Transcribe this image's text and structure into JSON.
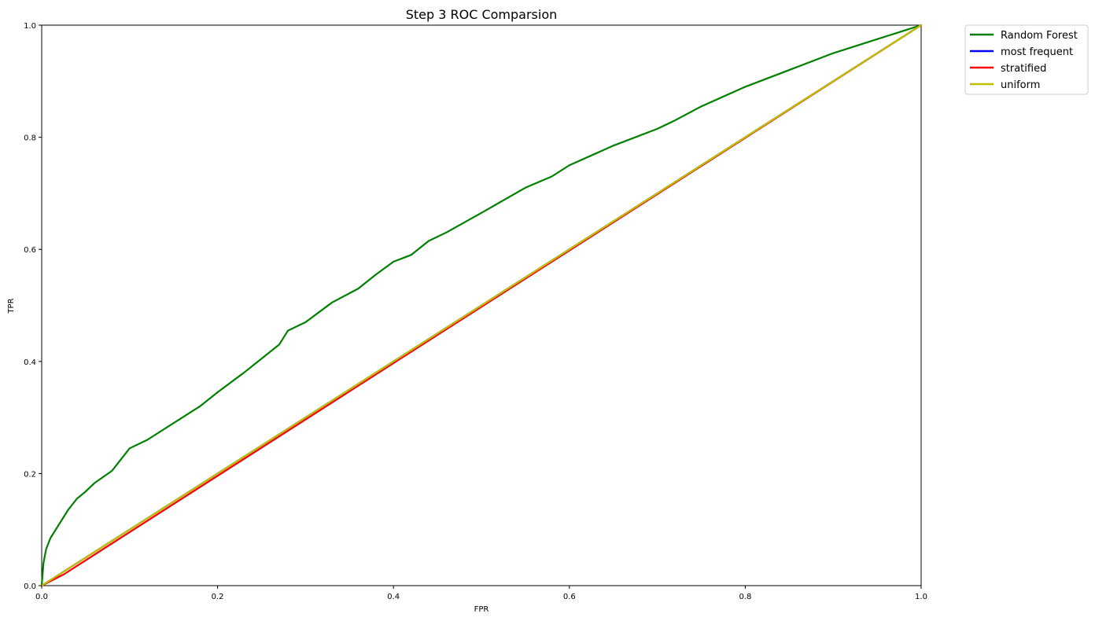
{
  "chart_data": {
    "type": "line",
    "title": "Step 3 ROC Comparsion",
    "xlabel": "FPR",
    "ylabel": "TPR",
    "xlim": [
      0.0,
      1.0
    ],
    "ylim": [
      0.0,
      1.0
    ],
    "xticks": [
      "0.0",
      "0.2",
      "0.4",
      "0.6",
      "0.8",
      "1.0"
    ],
    "yticks": [
      "0.0",
      "0.2",
      "0.4",
      "0.6",
      "0.8",
      "1.0"
    ],
    "grid": false,
    "legend_position": "outside-top-right",
    "series": [
      {
        "name": "Random Forest",
        "color": "#008000",
        "x": [
          0.0,
          0.002,
          0.005,
          0.01,
          0.02,
          0.03,
          0.04,
          0.05,
          0.06,
          0.08,
          0.1,
          0.12,
          0.15,
          0.18,
          0.2,
          0.23,
          0.25,
          0.27,
          0.28,
          0.3,
          0.33,
          0.36,
          0.38,
          0.4,
          0.42,
          0.44,
          0.46,
          0.5,
          0.55,
          0.58,
          0.6,
          0.65,
          0.7,
          0.72,
          0.75,
          0.8,
          0.85,
          0.9,
          0.95,
          1.0
        ],
        "y": [
          0.0,
          0.04,
          0.065,
          0.085,
          0.11,
          0.135,
          0.155,
          0.168,
          0.183,
          0.205,
          0.245,
          0.26,
          0.29,
          0.32,
          0.345,
          0.38,
          0.405,
          0.43,
          0.455,
          0.47,
          0.505,
          0.53,
          0.555,
          0.578,
          0.59,
          0.615,
          0.63,
          0.665,
          0.71,
          0.73,
          0.75,
          0.785,
          0.815,
          0.83,
          0.855,
          0.89,
          0.92,
          0.95,
          0.975,
          1.0
        ]
      },
      {
        "name": "most frequent",
        "color": "#0000ff",
        "x": [
          0.0,
          1.0
        ],
        "y": [
          0.0,
          1.0
        ]
      },
      {
        "name": "stratified",
        "color": "#ff0000",
        "x": [
          0.0,
          0.025,
          1.0
        ],
        "y": [
          0.0,
          0.02,
          1.0
        ]
      },
      {
        "name": "uniform",
        "color": "#bfbf00",
        "x": [
          0.0,
          1.0
        ],
        "y": [
          0.0,
          1.0
        ]
      }
    ]
  }
}
